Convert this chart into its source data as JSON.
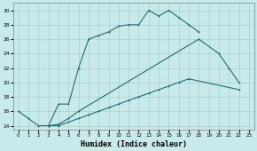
{
  "xlabel": "Humidex (Indice chaleur)",
  "ylabel": "",
  "bg_color": "#c8eaea",
  "grid_color": "#a8cece",
  "line_color": "#1a7070",
  "xlim": [
    -0.5,
    23.5
  ],
  "ylim": [
    13.5,
    31
  ],
  "xticks": [
    0,
    1,
    2,
    3,
    4,
    5,
    6,
    7,
    8,
    9,
    10,
    11,
    12,
    13,
    14,
    15,
    16,
    17,
    18,
    19,
    20,
    21,
    22,
    23
  ],
  "yticks": [
    14,
    16,
    18,
    20,
    22,
    24,
    26,
    28,
    30
  ],
  "line1_x": [
    0,
    1,
    2,
    3,
    4,
    5,
    6,
    7,
    8,
    9,
    10,
    11,
    12,
    13,
    14,
    15,
    16,
    17,
    18
  ],
  "line1_y": [
    16,
    15,
    14,
    14,
    17,
    17,
    22,
    26,
    26.5,
    27,
    27.8,
    28,
    28,
    30,
    29.2,
    30,
    29,
    28,
    27
  ],
  "line2_x": [
    3,
    4,
    5,
    6,
    18,
    20,
    21,
    22
  ],
  "line2_y": [
    14,
    14.2,
    15,
    16,
    26,
    24,
    22,
    20
  ],
  "line3_x": [
    3,
    4,
    5,
    6,
    7,
    8,
    9,
    10,
    11,
    12,
    13,
    14,
    15,
    16,
    17,
    22
  ],
  "line3_y": [
    14.0,
    14.0,
    14.5,
    15,
    15.5,
    16,
    16.5,
    17,
    17.5,
    18,
    18.5,
    19,
    19.5,
    20,
    20.5,
    19
  ]
}
